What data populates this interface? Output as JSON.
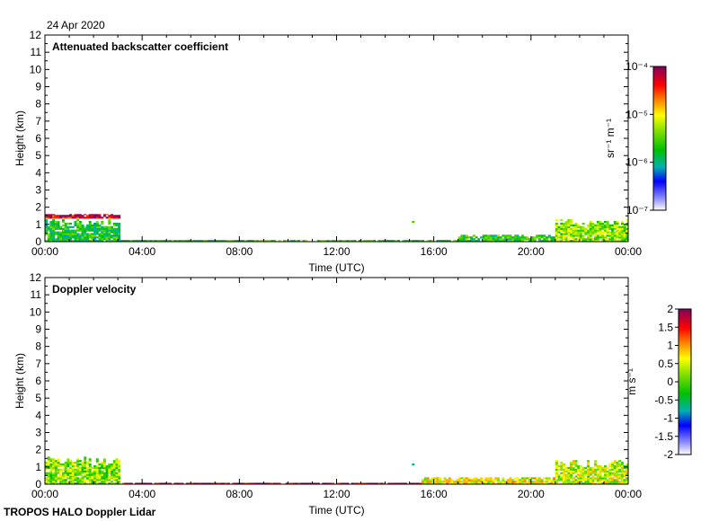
{
  "date": "24 Apr 2020",
  "footer": "TROPOS HALO Doppler Lidar",
  "chart_data": [
    {
      "type": "heatmap",
      "title": "Attenuated backscatter coefficient",
      "xlabel": "Time (UTC)",
      "ylabel": "Height (km)",
      "xlim": [
        0,
        24
      ],
      "ylim": [
        0,
        12
      ],
      "x_ticks": [
        "00:00",
        "04:00",
        "08:00",
        "12:00",
        "16:00",
        "20:00",
        "00:00"
      ],
      "y_ticks": [
        0,
        1,
        2,
        3,
        4,
        5,
        6,
        7,
        8,
        9,
        10,
        11,
        12
      ],
      "colorbar": {
        "scale": "log",
        "label": "sr⁻¹ m⁻¹",
        "range": [
          1e-07,
          0.0001
        ],
        "ticks": [
          "10⁻⁴",
          "10⁻⁵",
          "10⁻⁶",
          "10⁻⁷"
        ]
      },
      "features": [
        {
          "t_start": 0.0,
          "t_end": 3.1,
          "h_bottom": 0.0,
          "h_top": 1.3,
          "value_level": 0.42
        },
        {
          "t_start": 0.0,
          "t_end": 3.1,
          "h_bottom": 1.35,
          "h_top": 1.6,
          "value_level": 0.92
        },
        {
          "t_start": 3.1,
          "t_end": 17.0,
          "h_bottom": 0.0,
          "h_top": 0.1,
          "value_level": 0.45
        },
        {
          "t_start": 15.1,
          "t_end": 15.2,
          "h_bottom": 1.1,
          "h_top": 1.2,
          "value_level": 0.55
        },
        {
          "t_start": 17.0,
          "t_end": 21.0,
          "h_bottom": 0.0,
          "h_top": 0.4,
          "value_level": 0.45
        },
        {
          "t_start": 21.0,
          "t_end": 24.0,
          "h_bottom": 0.0,
          "h_top": 1.3,
          "value_level": 0.55
        }
      ]
    },
    {
      "type": "heatmap",
      "title": "Doppler velocity",
      "xlabel": "Time (UTC)",
      "ylabel": "Height (km)",
      "xlim": [
        0,
        24
      ],
      "ylim": [
        0,
        12
      ],
      "x_ticks": [
        "00:00",
        "04:00",
        "08:00",
        "12:00",
        "16:00",
        "20:00",
        "00:00"
      ],
      "y_ticks": [
        0,
        1,
        2,
        3,
        4,
        5,
        6,
        7,
        8,
        9,
        10,
        11,
        12
      ],
      "colorbar": {
        "scale": "linear",
        "label": "m s⁻¹",
        "range": [
          -2,
          2
        ],
        "ticks": [
          "2",
          "1.5",
          "1",
          "0.5",
          "0",
          "-0.5",
          "-1",
          "-1.5",
          "-2"
        ]
      },
      "features": [
        {
          "t_start": 0.0,
          "t_end": 3.1,
          "h_bottom": 0.0,
          "h_top": 1.6,
          "value_level": 0.55
        },
        {
          "t_start": 3.1,
          "t_end": 15.5,
          "h_bottom": 0.0,
          "h_top": 0.08,
          "value_level": 0.95
        },
        {
          "t_start": 15.1,
          "t_end": 15.2,
          "h_bottom": 1.1,
          "h_top": 1.2,
          "value_level": 0.2
        },
        {
          "t_start": 15.5,
          "t_end": 21.0,
          "h_bottom": 0.0,
          "h_top": 0.4,
          "value_level": 0.65
        },
        {
          "t_start": 21.0,
          "t_end": 24.0,
          "h_bottom": 0.0,
          "h_top": 1.4,
          "value_level": 0.6
        }
      ]
    }
  ]
}
